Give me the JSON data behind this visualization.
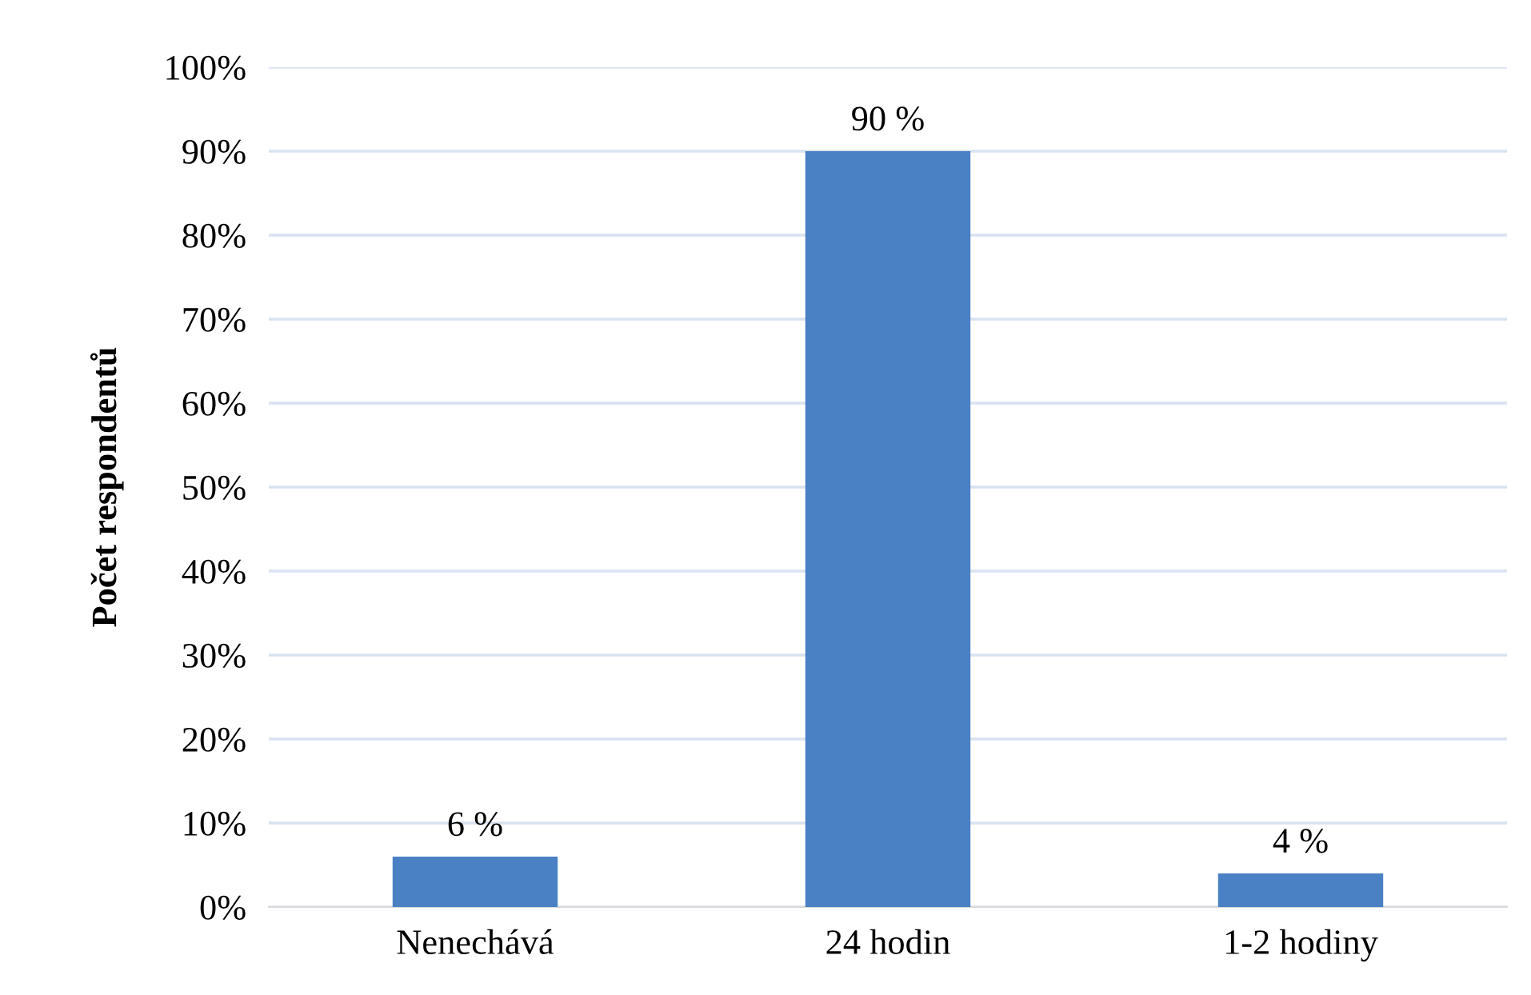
{
  "chart_data": {
    "type": "bar",
    "ylabel": "Počet respondentů",
    "categories": [
      "Nenechává",
      "24 hodin",
      "1-2 hodiny"
    ],
    "values": [
      6,
      90,
      4
    ],
    "color": "#4a80c4",
    "value_labels": [
      "6 %",
      "90 %",
      "4 %"
    ],
    "ylim": [
      0,
      100
    ],
    "yticks": [
      {
        "value": 0,
        "label": "0%"
      },
      {
        "value": 10,
        "label": "10%"
      },
      {
        "value": 20,
        "label": "20%"
      },
      {
        "value": 30,
        "label": "30%"
      },
      {
        "value": 40,
        "label": "40%"
      },
      {
        "value": 50,
        "label": "50%"
      },
      {
        "value": 60,
        "label": "60%"
      },
      {
        "value": 70,
        "label": "70%"
      },
      {
        "value": 80,
        "label": "80%"
      },
      {
        "value": 90,
        "label": "90%"
      },
      {
        "value": 100,
        "label": "100%"
      }
    ],
    "grid": "y"
  }
}
